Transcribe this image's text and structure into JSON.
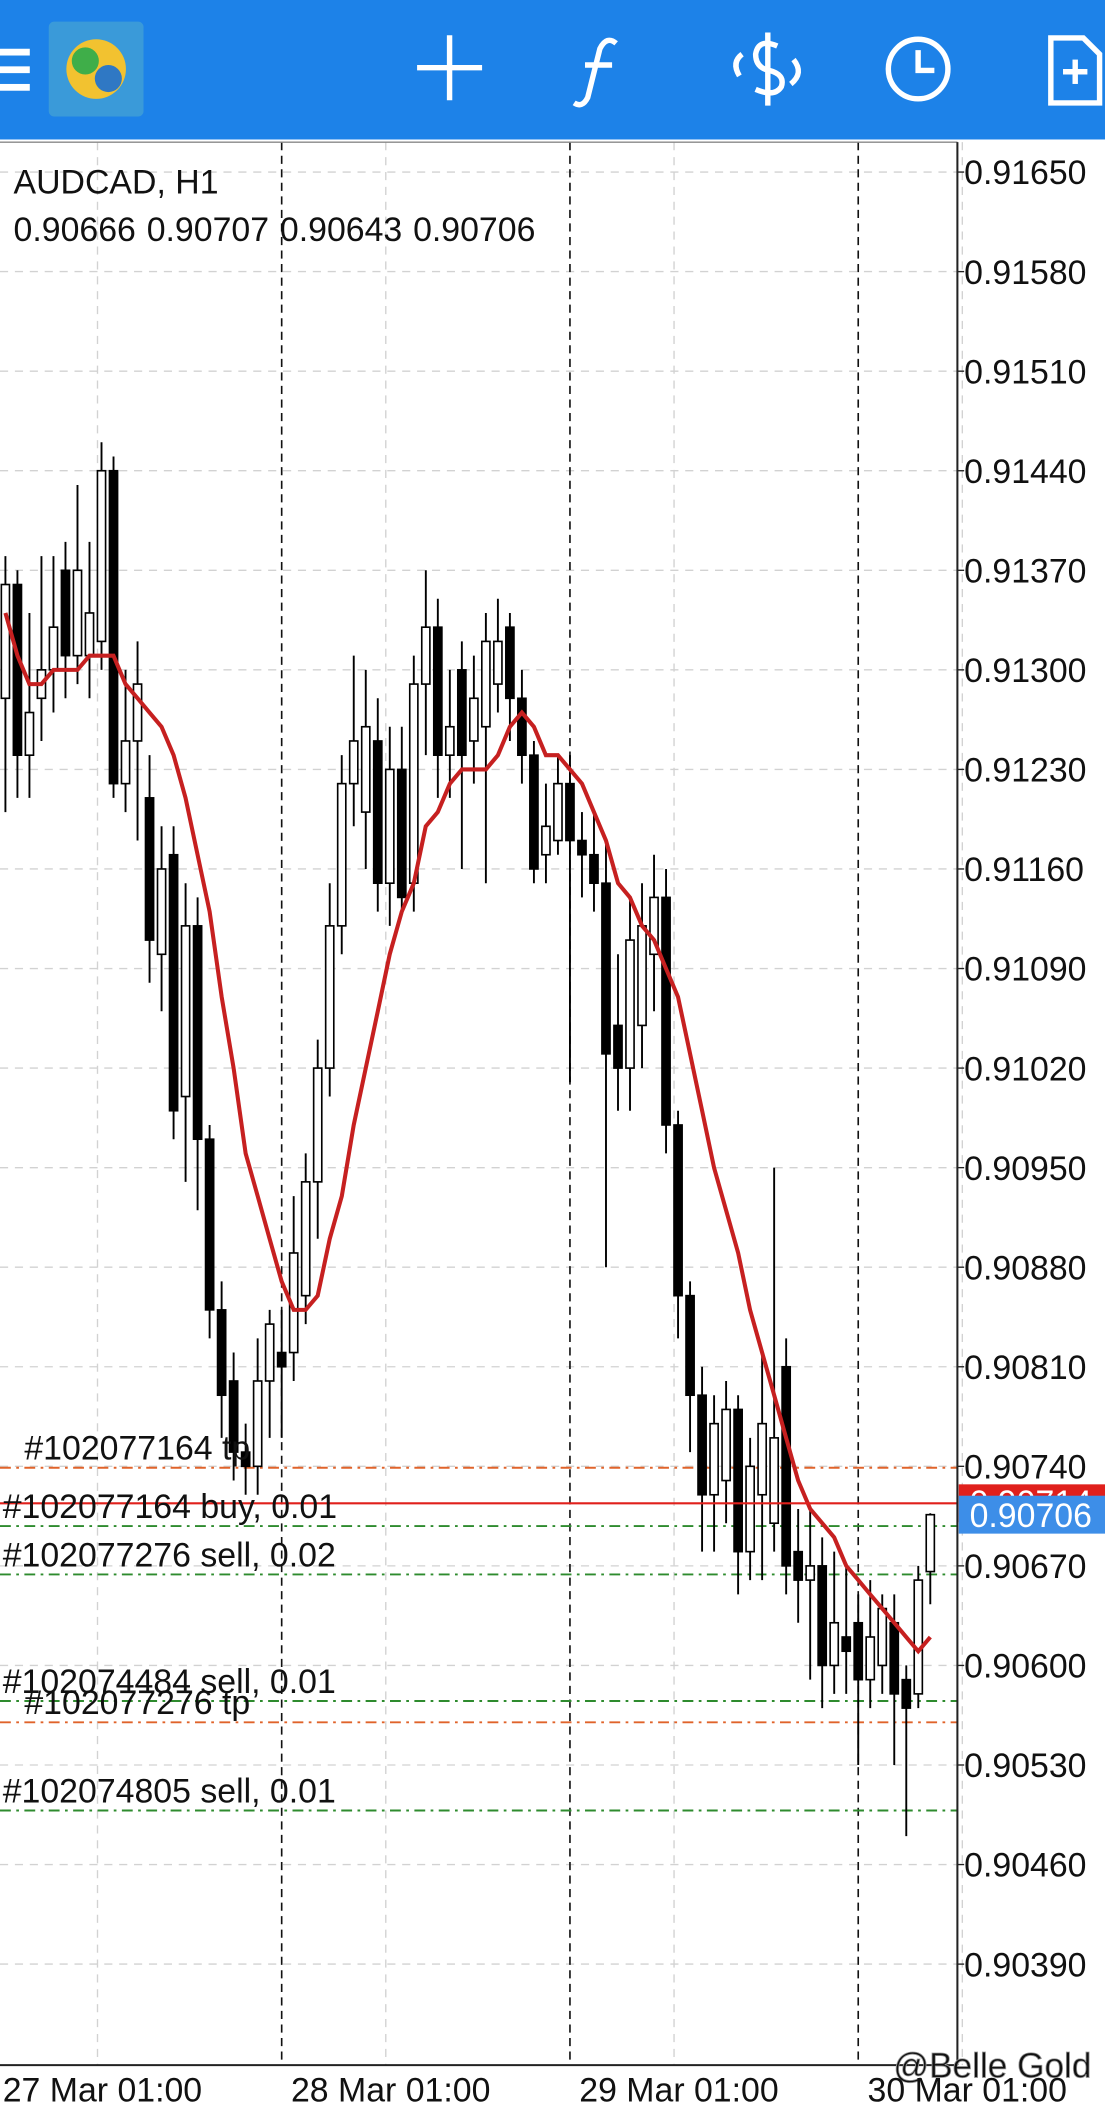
{
  "chart_data": {
    "type": "candlestick",
    "title": "AUDCAD, H1",
    "categories": [
      "27 Mar 01:00",
      null,
      null,
      null,
      null,
      null,
      null,
      null,
      null,
      null,
      null,
      null,
      null,
      null,
      null,
      null,
      null,
      null,
      null,
      null,
      null,
      null,
      null,
      null,
      "28 Mar 01:00",
      null,
      null,
      null,
      null,
      null,
      null,
      null,
      null,
      null,
      null,
      null,
      null,
      null,
      null,
      null,
      null,
      null,
      null,
      null,
      null,
      null,
      null,
      null,
      "29 Mar 01:00",
      null,
      null,
      null,
      null,
      null,
      null,
      null,
      null,
      null,
      null,
      null,
      null,
      null,
      null,
      null,
      null,
      null,
      null,
      null,
      null,
      null,
      null,
      null,
      "30 Mar 01:00",
      null,
      null,
      null,
      null,
      null
    ],
    "open": [
      0.9128,
      0.9136,
      0.9124,
      0.9128,
      0.913,
      0.9137,
      0.9131,
      0.9131,
      0.9132,
      0.9144,
      0.9122,
      0.9125,
      0.9121,
      0.911,
      0.9117,
      0.91,
      0.9112,
      0.9097,
      0.9085,
      0.908,
      0.9075,
      0.9074,
      0.908,
      0.9082,
      0.9082,
      0.9086,
      0.9094,
      0.9102,
      0.9112,
      0.9122,
      0.912,
      0.9125,
      0.9115,
      0.9123,
      0.9115,
      0.9129,
      0.9133,
      0.9124,
      0.913,
      0.9125,
      0.9126,
      0.9129,
      0.9133,
      0.9128,
      0.9124,
      0.9117,
      0.9118,
      0.9122,
      0.9118,
      0.9117,
      0.9115,
      0.9105,
      0.9102,
      0.9105,
      0.911,
      0.9114,
      0.9098,
      0.9086,
      0.9079,
      0.9072,
      0.9073,
      0.9078,
      0.9068,
      0.9072,
      0.907,
      0.9081,
      0.9068,
      0.9066,
      0.9067,
      0.906,
      0.9062,
      0.9063,
      0.9059,
      0.906,
      0.9063,
      0.9059,
      0.9058,
      0.90666
    ],
    "high": [
      0.9138,
      0.9137,
      0.9134,
      0.9138,
      0.9138,
      0.9139,
      0.9143,
      0.9139,
      0.9146,
      0.9145,
      0.913,
      0.9132,
      0.9124,
      0.9119,
      0.9119,
      0.9115,
      0.9114,
      0.9098,
      0.9087,
      0.9082,
      0.9077,
      0.9083,
      0.9085,
      0.9085,
      0.9093,
      0.9096,
      0.9104,
      0.9115,
      0.9124,
      0.9131,
      0.913,
      0.9128,
      0.9126,
      0.9126,
      0.9131,
      0.9137,
      0.9135,
      0.913,
      0.9132,
      0.9131,
      0.9134,
      0.9135,
      0.9134,
      0.913,
      0.9125,
      0.9122,
      0.9124,
      0.9124,
      0.912,
      0.912,
      0.9118,
      0.911,
      0.9114,
      0.9115,
      0.9117,
      0.9116,
      0.9099,
      0.9087,
      0.9081,
      0.9079,
      0.908,
      0.9079,
      0.9076,
      0.9082,
      0.9095,
      0.9083,
      0.9071,
      0.9071,
      0.9069,
      0.9068,
      0.9067,
      0.9065,
      0.9066,
      0.9065,
      0.9065,
      0.906,
      0.9067,
      0.90707
    ],
    "low": [
      0.912,
      0.9121,
      0.9121,
      0.9125,
      0.9127,
      0.9128,
      0.9129,
      0.9128,
      0.913,
      0.9121,
      0.912,
      0.9118,
      0.9108,
      0.9106,
      0.9097,
      0.9094,
      0.9092,
      0.9083,
      0.9076,
      0.9073,
      0.9072,
      0.9072,
      0.9076,
      0.9076,
      0.908,
      0.9084,
      0.909,
      0.91,
      0.911,
      0.9119,
      0.9116,
      0.9113,
      0.9112,
      0.9113,
      0.9113,
      0.9124,
      0.9121,
      0.9121,
      0.9116,
      0.9122,
      0.9115,
      0.9127,
      0.9125,
      0.9122,
      0.9115,
      0.9115,
      0.9117,
      0.9101,
      0.9114,
      0.9113,
      0.9088,
      0.9099,
      0.9099,
      0.9102,
      0.9106,
      0.9096,
      0.9083,
      0.9075,
      0.9068,
      0.9068,
      0.907,
      0.9065,
      0.9066,
      0.9066,
      0.9068,
      0.9065,
      0.9063,
      0.9059,
      0.9057,
      0.9058,
      0.9058,
      0.9053,
      0.9057,
      0.9058,
      0.9053,
      0.9048,
      0.9057,
      0.90643
    ],
    "close": [
      0.9136,
      0.9124,
      0.9127,
      0.913,
      0.9133,
      0.9131,
      0.9137,
      0.9134,
      0.9144,
      0.9122,
      0.9125,
      0.9129,
      0.9111,
      0.9116,
      0.9099,
      0.9112,
      0.9097,
      0.9085,
      0.9079,
      0.9075,
      0.9074,
      0.908,
      0.9084,
      0.9081,
      0.9089,
      0.9094,
      0.9102,
      0.9112,
      0.9122,
      0.9125,
      0.9126,
      0.9115,
      0.9123,
      0.9114,
      0.9129,
      0.9133,
      0.9124,
      0.9126,
      0.9124,
      0.9128,
      0.9132,
      0.9132,
      0.9128,
      0.9124,
      0.9116,
      0.9119,
      0.9122,
      0.9118,
      0.9117,
      0.9115,
      0.9103,
      0.9102,
      0.9111,
      0.9112,
      0.9114,
      0.9098,
      0.9086,
      0.9079,
      0.9072,
      0.9077,
      0.9078,
      0.9068,
      0.9074,
      0.9077,
      0.9076,
      0.9067,
      0.9066,
      0.9067,
      0.906,
      0.9063,
      0.9061,
      0.9059,
      0.9062,
      0.9064,
      0.9058,
      0.9057,
      0.9066,
      0.90706
    ],
    "ma": {
      "color": "#c62020",
      "values": [
        0.9134,
        0.9131,
        0.9129,
        0.9129,
        0.913,
        0.913,
        0.913,
        0.9131,
        0.9131,
        0.9131,
        0.9129,
        0.9128,
        0.9127,
        0.9126,
        0.9124,
        0.9121,
        0.9117,
        0.9113,
        0.9107,
        0.9102,
        0.9096,
        0.9093,
        0.909,
        0.9087,
        0.9085,
        0.9085,
        0.9086,
        0.909,
        0.9093,
        0.9098,
        0.9102,
        0.9106,
        0.911,
        0.9113,
        0.9115,
        0.9119,
        0.912,
        0.9122,
        0.9123,
        0.9123,
        0.9123,
        0.9124,
        0.9126,
        0.9127,
        0.9126,
        0.9124,
        0.9124,
        0.9123,
        0.9122,
        0.912,
        0.9118,
        0.9115,
        0.9114,
        0.9112,
        0.9111,
        0.9109,
        0.9107,
        0.9103,
        0.9099,
        0.9095,
        0.9092,
        0.9089,
        0.9085,
        0.9082,
        0.9079,
        0.9076,
        0.9073,
        0.9071,
        0.907,
        0.9069,
        0.9067,
        0.9066,
        0.9065,
        0.9064,
        0.9063,
        0.9062,
        0.9061,
        0.9062
      ]
    },
    "ask": 0.90714,
    "ask_color": "#e0201c",
    "bid_color": "#3d8ee8",
    "orders": [
      {
        "label": "#102077164 tp",
        "price": 0.90739,
        "color": "#e0632a"
      },
      {
        "label": "#102077164 buy, 0.01",
        "price": 0.90698,
        "color": "#2e8b2e"
      },
      {
        "label": "#102077276 sell, 0.02",
        "price": 0.90664,
        "color": "#2e8b2e"
      },
      {
        "label": "#102074484 sell, 0.01",
        "price": 0.90575,
        "color": "#2e8b2e"
      },
      {
        "label": "#102077276 tp",
        "price": 0.9056,
        "color": "#e0632a"
      },
      {
        "label": "#102074805 sell, 0.01",
        "price": 0.90498,
        "color": "#2e8b2e"
      }
    ],
    "ylim": [
      0.90319,
      0.91671
    ],
    "yticks": [
      {
        "value": 0.9165,
        "label": "0.91650"
      },
      {
        "value": 0.9158,
        "label": "0.91580"
      },
      {
        "value": 0.9151,
        "label": "0.91510"
      },
      {
        "value": 0.9144,
        "label": "0.91440"
      },
      {
        "value": 0.9137,
        "label": "0.91370"
      },
      {
        "value": 0.913,
        "label": "0.91300"
      },
      {
        "value": 0.9123,
        "label": "0.91230"
      },
      {
        "value": 0.9116,
        "label": "0.91160"
      },
      {
        "value": 0.9109,
        "label": "0.91090"
      },
      {
        "value": 0.9102,
        "label": "0.91020"
      },
      {
        "value": 0.9095,
        "label": "0.90950"
      },
      {
        "value": 0.9088,
        "label": "0.90880"
      },
      {
        "value": 0.9081,
        "label": "0.90810"
      },
      {
        "value": 0.9074,
        "label": "0.90740"
      },
      {
        "value": 0.9067,
        "label": "0.90670"
      },
      {
        "value": 0.906,
        "label": "0.90600"
      },
      {
        "value": 0.9053,
        "label": "0.90530"
      },
      {
        "value": 0.9046,
        "label": "0.90460"
      },
      {
        "value": 0.9039,
        "label": "0.90390"
      }
    ],
    "grid": true
  },
  "watermark": "@Belle Gold"
}
